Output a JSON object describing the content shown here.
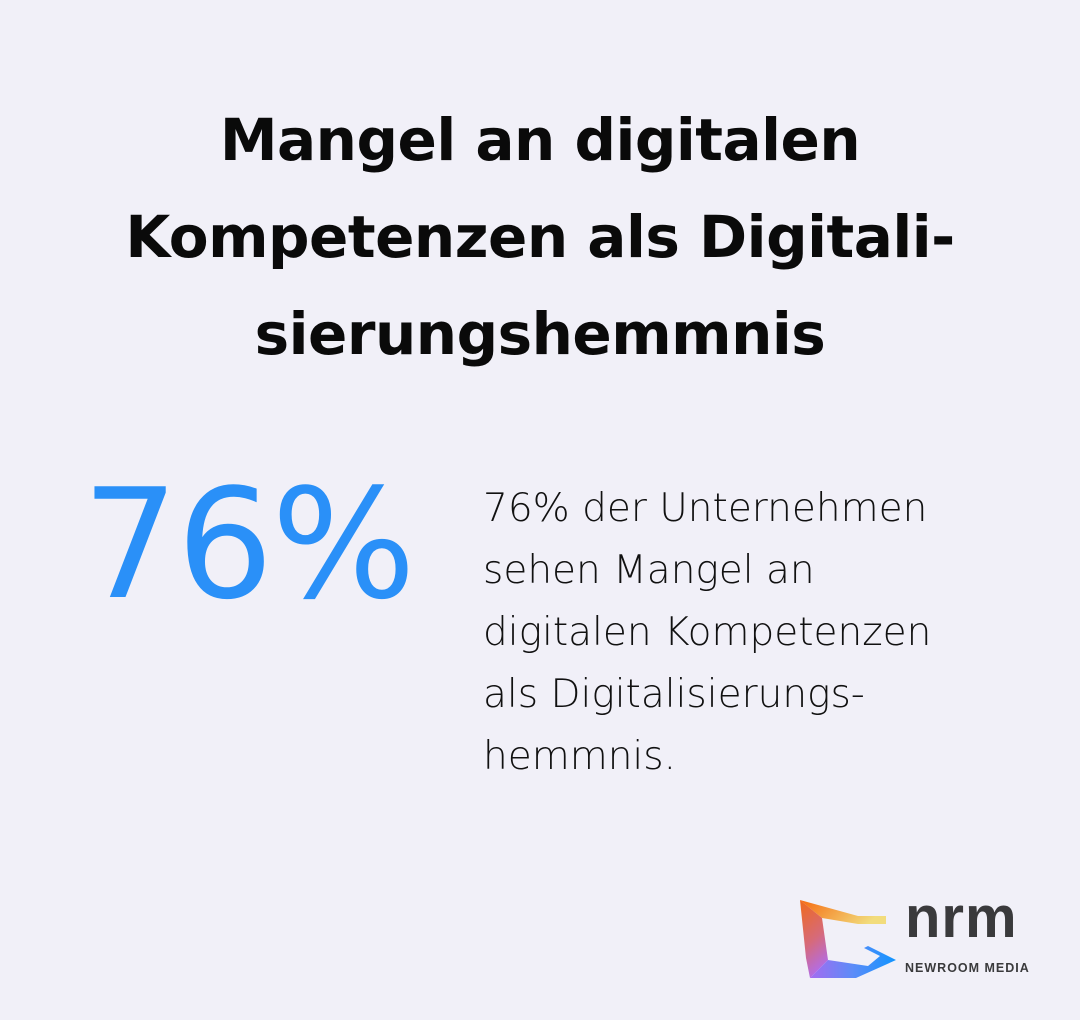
{
  "title": {
    "lines": [
      "Mangel an digitalen",
      "Kompetenzen als Digitali-",
      "sierungshemmnis"
    ]
  },
  "stat": {
    "value": "76%",
    "color": "#2a90f8"
  },
  "description": {
    "lines": [
      "76% der Unternehmen",
      "sehen Mangel an",
      "digitalen Kompetenzen",
      "als Digitalisierungs-",
      "hemmnis."
    ]
  },
  "logo": {
    "wordmark": "nrm",
    "tagline": "NEWROOM MEDIA"
  }
}
